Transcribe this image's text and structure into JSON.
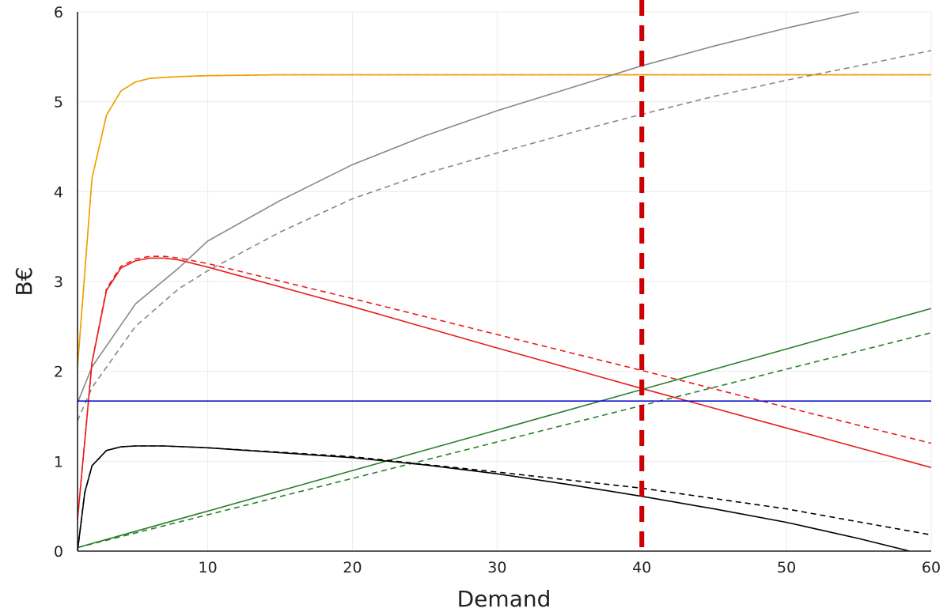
{
  "chart_data": {
    "type": "line",
    "xlabel": "Demand",
    "ylabel": "B€",
    "xlim": [
      1,
      60
    ],
    "ylim": [
      0,
      6
    ],
    "xticks": [
      10,
      20,
      30,
      40,
      50,
      60
    ],
    "yticks": [
      0,
      1,
      2,
      3,
      4,
      5,
      6
    ],
    "grid": true,
    "legend": "none",
    "vline": {
      "x": 40,
      "color": "#cc0000",
      "style": "dashed"
    },
    "series": [
      {
        "color": "#f0a000",
        "style": "solid",
        "x": [
          1,
          2,
          3,
          4,
          5,
          6,
          8,
          10,
          15,
          20,
          30,
          40,
          50,
          60
        ],
        "y": [
          2.05,
          4.15,
          4.85,
          5.12,
          5.22,
          5.26,
          5.28,
          5.29,
          5.3,
          5.3,
          5.3,
          5.3,
          5.3,
          5.3
        ]
      },
      {
        "color": "#f0a000",
        "style": "dashed",
        "x": [
          1,
          2,
          3,
          4,
          5,
          6,
          8,
          10,
          15,
          20,
          30,
          40,
          50,
          60
        ],
        "y": [
          2.05,
          4.15,
          4.85,
          5.12,
          5.22,
          5.26,
          5.28,
          5.29,
          5.3,
          5.3,
          5.3,
          5.3,
          5.3,
          5.3
        ]
      },
      {
        "color": "#888888",
        "style": "solid",
        "x": [
          1,
          2,
          5,
          8,
          10,
          15,
          20,
          25,
          30,
          35,
          40,
          45,
          50,
          55
        ],
        "y": [
          1.65,
          2.05,
          2.75,
          3.15,
          3.45,
          3.9,
          4.3,
          4.62,
          4.9,
          5.15,
          5.4,
          5.62,
          5.82,
          6.0
        ]
      },
      {
        "color": "#888888",
        "style": "dashed",
        "x": [
          1,
          2,
          5,
          8,
          10,
          15,
          20,
          25,
          30,
          35,
          40,
          45,
          50,
          55,
          60
        ],
        "y": [
          1.45,
          1.82,
          2.5,
          2.92,
          3.12,
          3.55,
          3.92,
          4.2,
          4.43,
          4.65,
          4.86,
          5.06,
          5.24,
          5.4,
          5.57
        ]
      },
      {
        "color": "#e81c1c",
        "style": "solid",
        "x": [
          1,
          2,
          3,
          4,
          5,
          6,
          7,
          8,
          10,
          20,
          30,
          40,
          50,
          60
        ],
        "y": [
          0.35,
          2.1,
          2.9,
          3.15,
          3.23,
          3.26,
          3.26,
          3.24,
          3.16,
          2.72,
          2.26,
          1.81,
          1.37,
          0.93
        ]
      },
      {
        "color": "#e81c1c",
        "style": "dashed",
        "x": [
          1,
          2,
          3,
          4,
          5,
          6,
          7,
          8,
          10,
          20,
          30,
          40,
          50,
          60
        ],
        "y": [
          0.35,
          2.1,
          2.92,
          3.17,
          3.25,
          3.28,
          3.28,
          3.26,
          3.2,
          2.81,
          2.41,
          2.01,
          1.6,
          1.2
        ]
      },
      {
        "color": "#2a7e2a",
        "style": "solid",
        "x": [
          1,
          60
        ],
        "y": [
          0.04,
          2.7
        ]
      },
      {
        "color": "#2a7e2a",
        "style": "dashed",
        "x": [
          1,
          60
        ],
        "y": [
          0.04,
          2.43
        ]
      },
      {
        "color": "#1010d0",
        "style": "solid",
        "x": [
          1,
          60
        ],
        "y": [
          1.67,
          1.67
        ]
      },
      {
        "color": "#000000",
        "style": "solid",
        "x": [
          1,
          1.5,
          2,
          3,
          4,
          5,
          6,
          7,
          10,
          20,
          25,
          30,
          35,
          40,
          45,
          50,
          55,
          58.5
        ],
        "y": [
          0.0,
          0.65,
          0.95,
          1.12,
          1.16,
          1.17,
          1.17,
          1.17,
          1.15,
          1.04,
          0.96,
          0.86,
          0.74,
          0.61,
          0.47,
          0.32,
          0.14,
          0.0
        ]
      },
      {
        "color": "#000000",
        "style": "dashed",
        "x": [
          1,
          1.5,
          2,
          3,
          4,
          5,
          6,
          7,
          10,
          20,
          30,
          40,
          50,
          60
        ],
        "y": [
          0.0,
          0.65,
          0.95,
          1.12,
          1.16,
          1.17,
          1.17,
          1.17,
          1.15,
          1.05,
          0.88,
          0.7,
          0.47,
          0.18
        ]
      }
    ]
  }
}
